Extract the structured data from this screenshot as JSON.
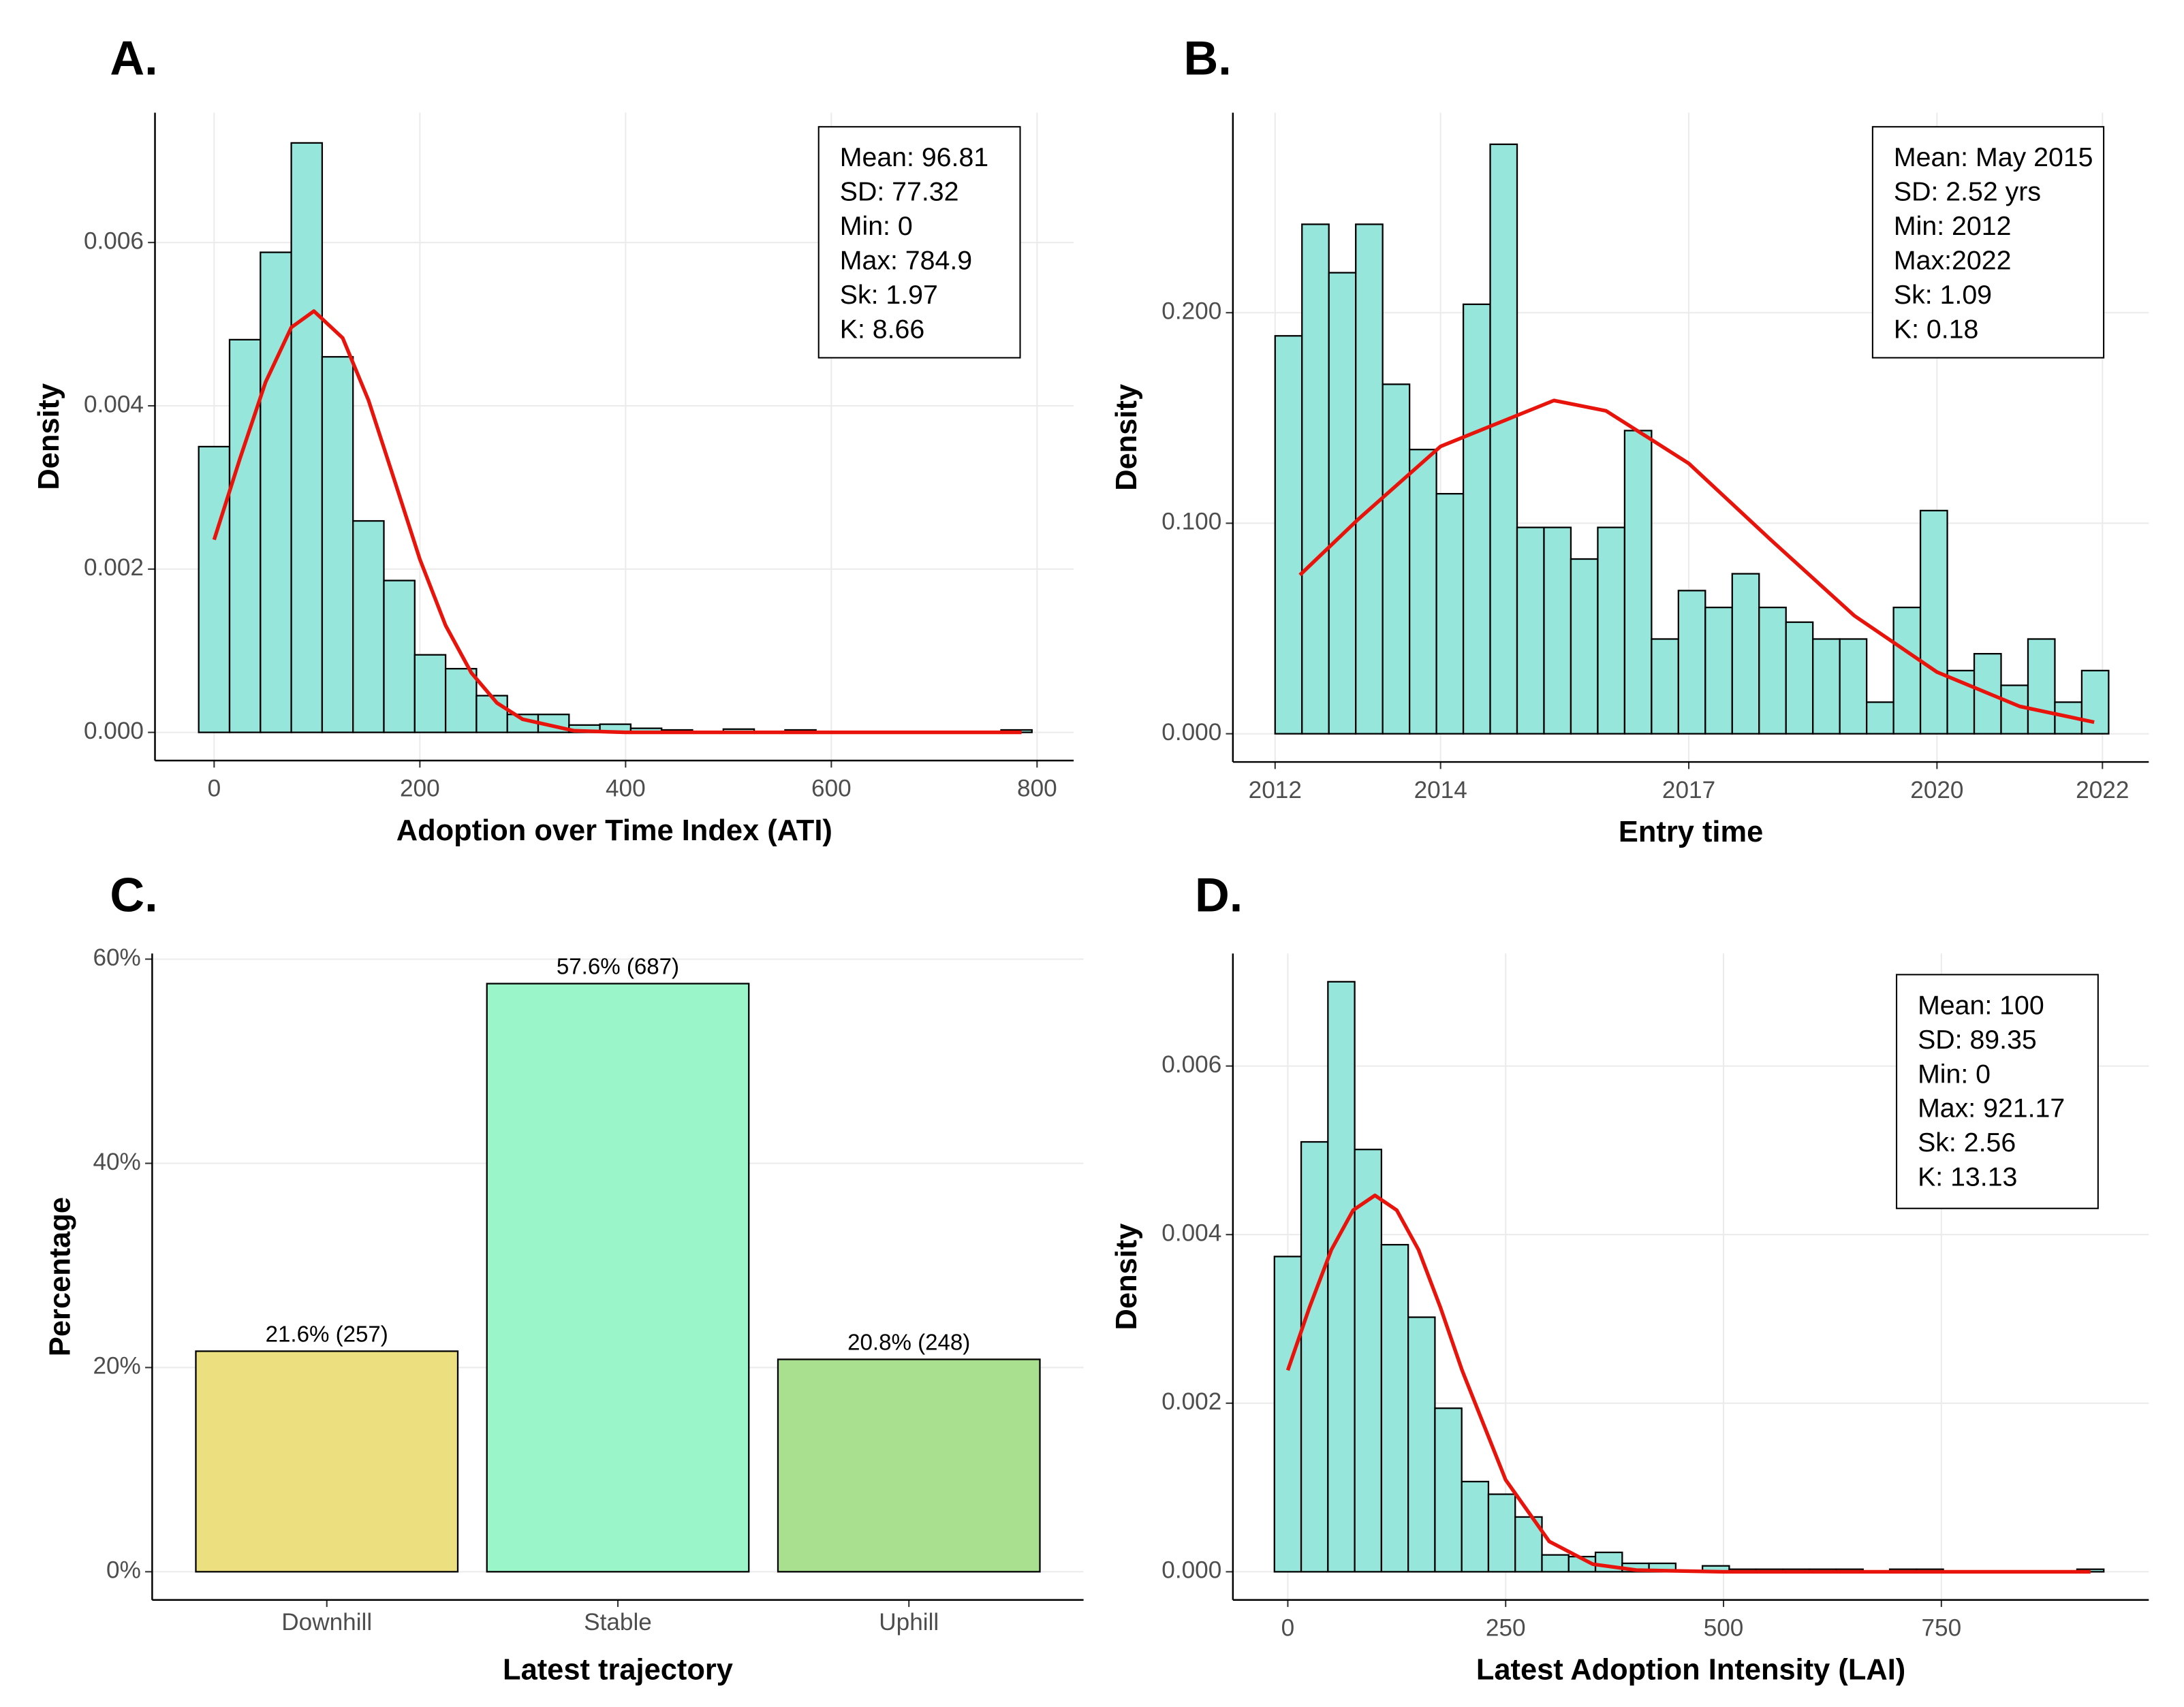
{
  "chart_data": [
    {
      "type": "histogram",
      "panel_label": "A.",
      "xlabel": "Adoption over Time Index (ATI)",
      "ylabel": "Density",
      "bins": [
        -15,
        15,
        45,
        75,
        105,
        135,
        165,
        195,
        225,
        255,
        285,
        315,
        345,
        375,
        405,
        435,
        465,
        495,
        525,
        555,
        585,
        615,
        645,
        675,
        705,
        735,
        765,
        795
      ],
      "values": [
        0.0035,
        0.00481,
        0.00588,
        0.00722,
        0.0046,
        0.00259,
        0.00186,
        0.00095,
        0.00078,
        0.00045,
        0.00022,
        0.00022,
        9e-05,
        0.0001,
        5e-05,
        3e-05,
        0,
        4e-05,
        0,
        3e-05,
        0,
        0,
        0,
        0,
        0,
        0,
        3e-05
      ],
      "color": "#96e6dc",
      "edge_color": "#000000",
      "curve": {
        "color": "#e8140c",
        "x": [
          0,
          25,
          50,
          75,
          97,
          125,
          150,
          175,
          200,
          225,
          250,
          275,
          300,
          350,
          400,
          600,
          784.9
        ],
        "values": [
          0.00236,
          0.00335,
          0.00429,
          0.00496,
          0.00516,
          0.00483,
          0.00407,
          0.0031,
          0.00212,
          0.00131,
          0.00073,
          0.00036,
          0.00016,
          2e-05,
          0,
          0,
          0
        ]
      },
      "xlim": [
        -57.5,
        835.6
      ],
      "ylim": [
        -0.000345,
        0.00759
      ],
      "xticks": [
        0,
        200,
        400,
        600,
        800
      ],
      "yticks": [
        {
          "value": 0,
          "label": "0.000"
        },
        {
          "value": 0.002,
          "label": "0.002"
        },
        {
          "value": 0.004,
          "label": "0.004"
        },
        {
          "value": 0.006,
          "label": "0.006"
        }
      ],
      "grid": true,
      "annotation": [
        "Mean: 96.81",
        "SD: 77.32",
        "Min: 0",
        "Max: 784.9",
        "Sk: 1.97",
        "K: 8.66"
      ]
    },
    {
      "type": "histogram",
      "panel_label": "B.",
      "xlabel": "Entry time",
      "ylabel": "Density",
      "bins": [
        2012,
        2012.325,
        2012.65,
        2012.975,
        2013.3,
        2013.625,
        2013.95,
        2014.275,
        2014.6,
        2014.925,
        2015.25,
        2015.575,
        2015.9,
        2016.225,
        2016.55,
        2016.875,
        2017.2,
        2017.525,
        2017.85,
        2018.175,
        2018.5,
        2018.825,
        2019.15,
        2019.475,
        2019.8,
        2020.125,
        2020.45,
        2020.775,
        2021.1,
        2021.425,
        2021.75,
        2022.075
      ],
      "values": [
        0.189,
        0.242,
        0.219,
        0.242,
        0.166,
        0.135,
        0.114,
        0.204,
        0.28,
        0.098,
        0.098,
        0.083,
        0.098,
        0.144,
        0.045,
        0.068,
        0.06,
        0.076,
        0.06,
        0.053,
        0.045,
        0.045,
        0.015,
        0.06,
        0.106,
        0.03,
        0.038,
        0.023,
        0.045,
        0.015,
        0.03
      ],
      "color": "#96e6dc",
      "edge_color": "#000000",
      "curve": {
        "color": "#e8140c",
        "x": [
          2012.3,
          2013,
          2014,
          2015.37,
          2016,
          2017,
          2018,
          2019,
          2020,
          2021,
          2021.9
        ],
        "values": [
          0.0754,
          0.1017,
          0.1365,
          0.1583,
          0.1534,
          0.1284,
          0.0918,
          0.0561,
          0.0293,
          0.013,
          0.0055
        ]
      },
      "xlim": [
        2011.49,
        2022.56
      ],
      "ylim": [
        -0.0134,
        0.295
      ],
      "xticks": [
        2012,
        2014,
        2017,
        2020,
        2022
      ],
      "yticks": [
        {
          "value": 0,
          "label": "0.000"
        },
        {
          "value": 0.1,
          "label": "0.100"
        },
        {
          "value": 0.2,
          "label": "0.200"
        }
      ],
      "grid": true,
      "annotation": [
        "Mean: May 2015",
        "SD: 2.52 yrs",
        "Min: 2012",
        "Max:2022",
        "Sk: 1.09",
        "K: 0.18"
      ]
    },
    {
      "type": "bar",
      "panel_label": "C.",
      "xlabel": "Latest trajectory",
      "ylabel": "Percentage",
      "categories": [
        "Downhill",
        "Stable",
        "Uphill"
      ],
      "values": [
        21.6,
        57.6,
        20.8
      ],
      "value_labels": [
        "21.6% (257)",
        "57.6% (687)",
        "20.8% (248)"
      ],
      "colors": [
        "#ebdf80",
        "#9af5c9",
        "#a8e08f"
      ],
      "edge_color": "#000000",
      "ylim": [
        -2.76,
        60.55
      ],
      "yticks": [
        {
          "value": 0,
          "label": "0%"
        },
        {
          "value": 20,
          "label": "20%"
        },
        {
          "value": 40,
          "label": "40%"
        },
        {
          "value": 60,
          "label": "60%"
        }
      ],
      "grid": true
    },
    {
      "type": "histogram",
      "panel_label": "D.",
      "xlabel": "Latest Adoption Intensity (LAI)",
      "ylabel": "Density",
      "bins": [
        -15.35,
        15.35,
        46.05,
        76.75,
        107.45,
        138.15,
        168.85,
        199.55,
        230.25,
        260.95,
        291.65,
        322.35,
        353.05,
        383.75,
        414.45,
        445.15,
        475.85,
        506.55,
        537.25,
        567.95,
        598.65,
        629.35,
        660.05,
        690.75,
        721.45,
        752.15,
        782.85,
        813.55,
        844.25,
        874.95,
        905.65,
        936.35
      ],
      "values": [
        0.00374,
        0.0051,
        0.007,
        0.00501,
        0.00388,
        0.00302,
        0.00194,
        0.00107,
        0.00092,
        0.00065,
        0.0002,
        0.00018,
        0.00023,
        0.0001,
        0.0001,
        0,
        7e-05,
        3e-05,
        3e-05,
        3e-05,
        3e-05,
        3e-05,
        0,
        3e-05,
        3e-05,
        0,
        0,
        0,
        0,
        0,
        3e-05
      ],
      "color": "#96e6dc",
      "edge_color": "#000000",
      "curve": {
        "color": "#e8140c",
        "x": [
          0,
          25,
          50,
          75,
          100,
          125,
          150,
          175,
          200,
          250,
          300,
          350,
          400,
          500,
          700,
          921.17
        ],
        "values": [
          0.00239,
          0.00314,
          0.00382,
          0.00429,
          0.004465,
          0.00429,
          0.00382,
          0.00314,
          0.00239,
          0.00109,
          0.00036,
          9e-05,
          2e-05,
          0,
          0,
          0
        ]
      },
      "xlim": [
        -63,
        988
      ],
      "ylim": [
        -0.000334,
        0.007335
      ],
      "xticks": [
        0,
        250,
        500,
        750
      ],
      "yticks": [
        {
          "value": 0,
          "label": "0.000"
        },
        {
          "value": 0.002,
          "label": "0.002"
        },
        {
          "value": 0.004,
          "label": "0.004"
        },
        {
          "value": 0.006,
          "label": "0.006"
        }
      ],
      "grid": true,
      "annotation": [
        "Mean: 100",
        "SD: 89.35",
        "Min: 0",
        "Max: 921.17",
        "Sk: 2.56",
        "K: 13.13"
      ]
    }
  ]
}
